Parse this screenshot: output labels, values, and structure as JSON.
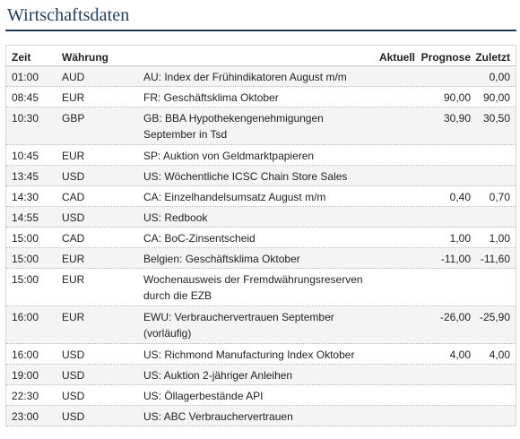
{
  "title": "Wirtschaftsdaten",
  "headers": {
    "zeit": "Zeit",
    "waehrung": "Währung",
    "ereignis": "",
    "aktuell": "Aktuell",
    "prognose": "Prognose",
    "zuletzt": "Zuletzt"
  },
  "rows": [
    {
      "time": "01:00",
      "currency": "AUD",
      "event": "AU: Index der Frühindikatoren August m/m",
      "aktuell": "",
      "prognose": "",
      "zuletzt": "0,00"
    },
    {
      "time": "08:45",
      "currency": "EUR",
      "event": "FR: Geschäftsklima Oktober",
      "aktuell": "",
      "prognose": "90,00",
      "zuletzt": "90,00"
    },
    {
      "time": "10:30",
      "currency": "GBP",
      "event": "GB: BBA Hypothekengenehmigungen September in Tsd",
      "aktuell": "",
      "prognose": "30,90",
      "zuletzt": "30,50"
    },
    {
      "time": "10:45",
      "currency": "EUR",
      "event": "SP: Auktion von Geldmarktpapieren",
      "aktuell": "",
      "prognose": "",
      "zuletzt": ""
    },
    {
      "time": "13:45",
      "currency": "USD",
      "event": "US: Wöchentliche ICSC Chain Store Sales",
      "aktuell": "",
      "prognose": "",
      "zuletzt": ""
    },
    {
      "time": "14:30",
      "currency": "CAD",
      "event": "CA: Einzelhandelsumsatz August m/m",
      "aktuell": "",
      "prognose": "0,40",
      "zuletzt": "0,70"
    },
    {
      "time": "14:55",
      "currency": "USD",
      "event": "US: Redbook",
      "aktuell": "",
      "prognose": "",
      "zuletzt": ""
    },
    {
      "time": "15:00",
      "currency": "CAD",
      "event": "CA: BoC-Zinsentscheid",
      "aktuell": "",
      "prognose": "1,00",
      "zuletzt": "1,00"
    },
    {
      "time": "15:00",
      "currency": "EUR",
      "event": "Belgien: Geschäftsklima Oktober",
      "aktuell": "",
      "prognose": "-11,00",
      "zuletzt": "-11,60"
    },
    {
      "time": "15:00",
      "currency": "EUR",
      "event": "Wochenausweis der Fremdwährungsreserven durch die EZB",
      "aktuell": "",
      "prognose": "",
      "zuletzt": ""
    },
    {
      "time": "16:00",
      "currency": "EUR",
      "event": "EWU: Verbrauchervertrauen September (vorläufig)",
      "aktuell": "",
      "prognose": "-26,00",
      "zuletzt": "-25,90"
    },
    {
      "time": "16:00",
      "currency": "USD",
      "event": "US: Richmond Manufacturing Index Oktober",
      "aktuell": "",
      "prognose": "4,00",
      "zuletzt": "4,00"
    },
    {
      "time": "19:00",
      "currency": "USD",
      "event": "US: Auktion 2-jähriger Anleihen",
      "aktuell": "",
      "prognose": "",
      "zuletzt": ""
    },
    {
      "time": "22:30",
      "currency": "USD",
      "event": "US: Öllagerbestände API",
      "aktuell": "",
      "prognose": "",
      "zuletzt": ""
    },
    {
      "time": "23:00",
      "currency": "USD",
      "event": "US: ABC Verbrauchervertrauen",
      "aktuell": "",
      "prognose": "",
      "zuletzt": ""
    }
  ]
}
